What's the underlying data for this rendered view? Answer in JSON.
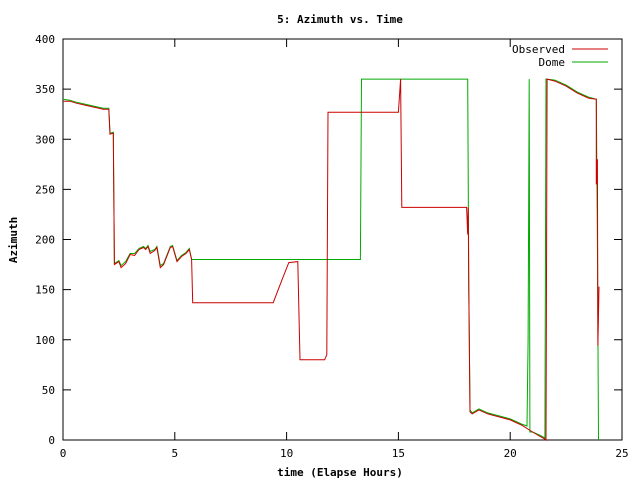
{
  "chart_data": {
    "type": "line",
    "title": "5: Azimuth vs. Time",
    "xlabel": "time (Elapse Hours)",
    "ylabel": "Azimuth",
    "xlim": [
      0,
      25
    ],
    "ylim": [
      0,
      400
    ],
    "x_ticks": [
      "0",
      "5",
      "10",
      "15",
      "20",
      "25"
    ],
    "y_ticks": [
      "0",
      "50",
      "100",
      "150",
      "200",
      "250",
      "300",
      "350",
      "400"
    ],
    "grid": false,
    "legend_position": "top-right",
    "series": [
      {
        "name": "Observed",
        "color": "#cc0000",
        "points": [
          [
            0.0,
            338
          ],
          [
            0.3,
            338
          ],
          [
            0.6,
            336
          ],
          [
            1.0,
            334
          ],
          [
            1.4,
            332
          ],
          [
            1.8,
            330
          ],
          [
            2.05,
            330
          ],
          [
            2.1,
            305
          ],
          [
            2.25,
            306
          ],
          [
            2.3,
            175
          ],
          [
            2.5,
            178
          ],
          [
            2.6,
            172
          ],
          [
            2.8,
            176
          ],
          [
            3.0,
            185
          ],
          [
            3.2,
            184
          ],
          [
            3.4,
            190
          ],
          [
            3.6,
            192
          ],
          [
            3.7,
            190
          ],
          [
            3.8,
            193
          ],
          [
            3.9,
            186
          ],
          [
            4.1,
            189
          ],
          [
            4.2,
            192
          ],
          [
            4.35,
            172
          ],
          [
            4.5,
            175
          ],
          [
            4.8,
            192
          ],
          [
            4.9,
            193
          ],
          [
            5.1,
            178
          ],
          [
            5.3,
            183
          ],
          [
            5.5,
            186
          ],
          [
            5.65,
            190
          ],
          [
            5.75,
            180
          ],
          [
            5.8,
            137
          ],
          [
            9.4,
            137
          ],
          [
            9.8,
            160
          ],
          [
            10.1,
            177
          ],
          [
            10.5,
            178
          ],
          [
            10.6,
            80
          ],
          [
            11.7,
            80
          ],
          [
            11.8,
            85
          ],
          [
            11.85,
            327
          ],
          [
            15.0,
            327
          ],
          [
            15.1,
            360
          ],
          [
            15.15,
            232
          ],
          [
            18.05,
            232
          ],
          [
            18.1,
            205
          ],
          [
            18.12,
            232
          ],
          [
            18.15,
            150
          ],
          [
            18.2,
            28
          ],
          [
            18.3,
            26
          ],
          [
            18.6,
            30
          ],
          [
            19.0,
            26
          ],
          [
            19.5,
            23
          ],
          [
            20.0,
            20
          ],
          [
            20.5,
            15
          ],
          [
            21.0,
            8
          ],
          [
            21.3,
            4
          ],
          [
            21.55,
            1
          ],
          [
            21.6,
            0
          ],
          [
            21.65,
            360
          ],
          [
            22.0,
            358
          ],
          [
            22.5,
            353
          ],
          [
            23.0,
            346
          ],
          [
            23.5,
            341
          ],
          [
            23.85,
            340
          ],
          [
            23.85,
            255
          ],
          [
            23.9,
            280
          ],
          [
            23.92,
            94
          ],
          [
            23.97,
            153
          ]
        ]
      },
      {
        "name": "Dome",
        "color": "#00aa00",
        "points": [
          [
            0.0,
            340
          ],
          [
            0.3,
            339
          ],
          [
            0.6,
            337
          ],
          [
            1.0,
            335
          ],
          [
            1.4,
            333
          ],
          [
            1.8,
            331
          ],
          [
            2.05,
            331
          ],
          [
            2.1,
            306
          ],
          [
            2.25,
            307
          ],
          [
            2.3,
            176
          ],
          [
            2.5,
            179
          ],
          [
            2.6,
            174
          ],
          [
            2.8,
            178
          ],
          [
            3.0,
            186
          ],
          [
            3.2,
            186
          ],
          [
            3.4,
            191
          ],
          [
            3.6,
            193
          ],
          [
            3.7,
            191
          ],
          [
            3.8,
            194
          ],
          [
            3.9,
            188
          ],
          [
            4.1,
            190
          ],
          [
            4.2,
            193
          ],
          [
            4.35,
            174
          ],
          [
            4.5,
            176
          ],
          [
            4.8,
            193
          ],
          [
            4.9,
            194
          ],
          [
            5.1,
            179
          ],
          [
            5.3,
            184
          ],
          [
            5.5,
            187
          ],
          [
            5.65,
            191
          ],
          [
            5.75,
            180
          ],
          [
            13.3,
            180
          ],
          [
            13.35,
            360
          ],
          [
            18.1,
            360
          ],
          [
            18.15,
            150
          ],
          [
            18.2,
            30
          ],
          [
            18.3,
            27
          ],
          [
            18.6,
            31
          ],
          [
            19.0,
            27
          ],
          [
            19.5,
            24
          ],
          [
            20.0,
            21
          ],
          [
            20.5,
            16
          ],
          [
            20.75,
            14
          ],
          [
            20.8,
            100
          ],
          [
            20.85,
            360
          ],
          [
            20.88,
            8
          ],
          [
            21.0,
            8
          ],
          [
            21.3,
            5
          ],
          [
            21.55,
            2
          ],
          [
            21.6,
            360
          ],
          [
            22.0,
            359
          ],
          [
            22.5,
            354
          ],
          [
            23.0,
            347
          ],
          [
            23.5,
            342
          ],
          [
            23.85,
            340
          ],
          [
            23.9,
            200
          ],
          [
            23.95,
            0
          ]
        ]
      }
    ]
  }
}
